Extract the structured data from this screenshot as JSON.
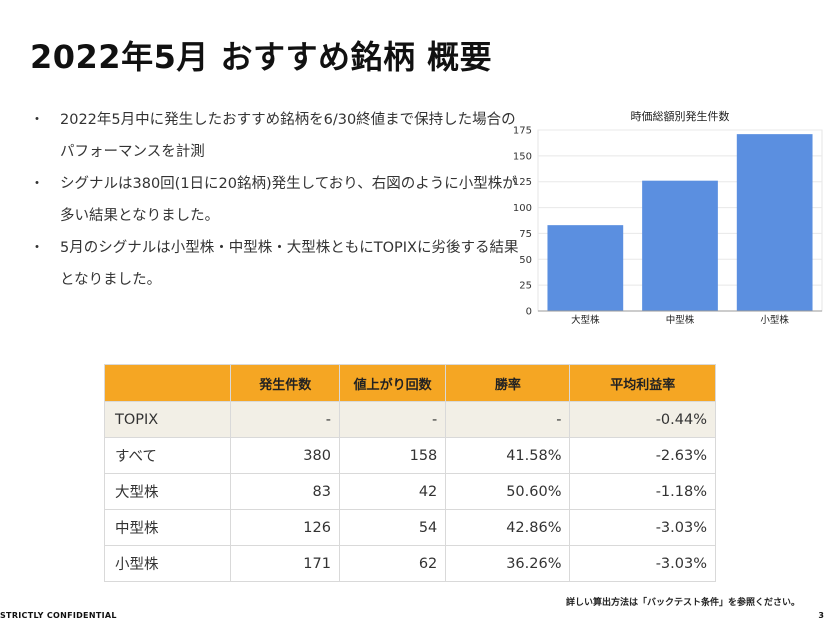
{
  "title": "2022年5月 おすすめ銘柄 概要",
  "bullets": [
    "2022年5月中に発生したおすすめ銘柄を6/30終値まで保持した場合のパフォーマンスを計測",
    "シグナルは380回(1日に20銘柄)発生しており、右図のように小型株が多い結果となりました。",
    "5月のシグナルは小型株・中型株・大型株ともにTOPIXに劣後する結果となりました。"
  ],
  "bullet_marker": "・",
  "chart_data": {
    "type": "bar",
    "title": "時価総額別発生件数",
    "categories": [
      "大型株",
      "中型株",
      "小型株"
    ],
    "values": [
      83,
      126,
      171
    ],
    "ylim": [
      0,
      175
    ],
    "yticks": [
      0,
      25,
      50,
      75,
      100,
      125,
      150,
      175
    ],
    "bar_color": "#5b8fe0",
    "grid": true
  },
  "table": {
    "headers": [
      "",
      "発生件数",
      "値上がり回数",
      "勝率",
      "平均利益率"
    ],
    "rows": [
      [
        "TOPIX",
        "-",
        "-",
        "-",
        "-0.44%"
      ],
      [
        "すべて",
        "380",
        "158",
        "41.58%",
        "-2.63%"
      ],
      [
        "大型株",
        "83",
        "42",
        "50.60%",
        "-1.18%"
      ],
      [
        "中型株",
        "126",
        "54",
        "42.86%",
        "-3.03%"
      ],
      [
        "小型株",
        "171",
        "62",
        "36.26%",
        "-3.03%"
      ]
    ],
    "header_color": "#f5a623",
    "highlight_row_color": "#f2efe6"
  },
  "footnote": "詳しい算出方法は「バックテスト条件」を参照ください。",
  "confidential": "STRICTLY CONFIDENTIAL",
  "page_number": "3"
}
